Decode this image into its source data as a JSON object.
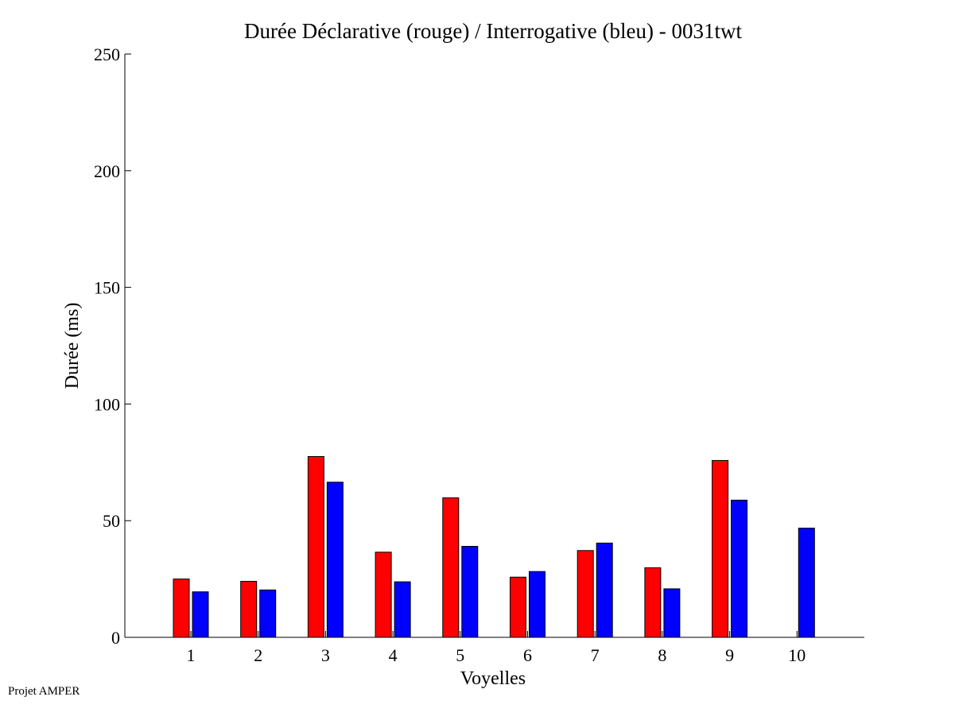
{
  "footer": {
    "text": "Projet AMPER"
  },
  "chart_data": {
    "type": "bar",
    "title": "Durée Déclarative (rouge) / Interrogative (bleu) - 0031twt",
    "xlabel": "Voyelles",
    "ylabel": "Durée (ms)",
    "ylim": [
      0,
      250
    ],
    "yticks": [
      0,
      50,
      100,
      150,
      200,
      250
    ],
    "categories": [
      "1",
      "2",
      "3",
      "4",
      "5",
      "6",
      "7",
      "8",
      "9",
      "10"
    ],
    "grid": false,
    "series": [
      {
        "name": "Déclarative",
        "color": "#ff0000",
        "values": [
          25,
          24,
          77.5,
          36.5,
          59.8,
          25.8,
          37.2,
          29.8,
          75.8,
          null
        ]
      },
      {
        "name": "Interrogative",
        "color": "#0000ff",
        "values": [
          19.5,
          20.3,
          66.5,
          23.8,
          39,
          28.2,
          40.4,
          20.8,
          58.8,
          46.8
        ]
      }
    ]
  }
}
